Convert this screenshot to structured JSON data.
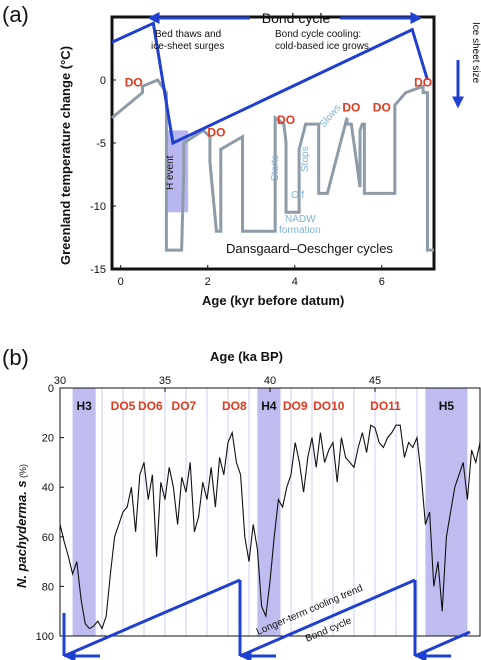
{
  "chart_data": [
    {
      "panel": "(a)",
      "type": "line",
      "xlabel": "Age (kyr before datum)",
      "ylabel": "Greenland temperature change (°C)",
      "xlim": [
        -0.2,
        7.2
      ],
      "ylim": [
        -15,
        5
      ],
      "xticks": [
        "0",
        "2",
        "4",
        "6"
      ],
      "yticks": [
        "0",
        "-5",
        "-10",
        "-15"
      ],
      "grid": false,
      "series": [
        {
          "color": "#8e9ba9",
          "x": [
            -0.2,
            0.5,
            0.5,
            0.85,
            0.85,
            1.05,
            1.05,
            1.4,
            1.45,
            1.45,
            1.9,
            2.05,
            2.05,
            2.2,
            2.3,
            2.3,
            2.55,
            2.8,
            2.8,
            3.0,
            3.55,
            3.55,
            3.75,
            3.8,
            3.8,
            4.1,
            4.1,
            4.25,
            4.55,
            4.55,
            4.75,
            5.2,
            5.2,
            5.3,
            5.5,
            5.5,
            5.55,
            5.6,
            5.6,
            6.3,
            6.3,
            6.55,
            6.95,
            6.95,
            7.05,
            7.05,
            7.2
          ],
          "y": [
            -3,
            -1,
            -0.5,
            0,
            0,
            -1,
            -13.5,
            -13.5,
            -7,
            -5,
            -4,
            -4.5,
            -6.5,
            -12,
            -12,
            -5.5,
            -5,
            -4.5,
            -12,
            -12,
            -12,
            -3,
            -3.5,
            -5,
            -10.5,
            -10.5,
            -5.5,
            -3.5,
            -3.5,
            -9,
            -9,
            -3,
            -3.5,
            -3.5,
            -8.5,
            -4,
            -3.5,
            -3.5,
            -9,
            -9,
            -2,
            -1,
            -0.5,
            -1,
            -1,
            -13.5,
            -13.5
          ]
        }
      ],
      "annotations": {
        "bond_cycle": "Bond cycle",
        "bed_thaws_1": "Bed thaws and",
        "bed_thaws_2": "ice-sheet surges",
        "cooling_1": "Bond cycle cooling:",
        "cooling_2": "cold-based ice grows",
        "ice_sheet_size": "Ice sheet size",
        "h_event": "H event",
        "do_label": "DO",
        "starts": "Starts",
        "stops": "Stops",
        "slows": "Slows",
        "off": "Off",
        "nadw_1": "NADW",
        "nadw_2": "formation",
        "dansgaard": "Dansgaard–Oeschger cycles"
      },
      "do_positions": [
        {
          "x": 0.3,
          "y": -0.5
        },
        {
          "x": 2.2,
          "y": -4.5
        },
        {
          "x": 3.8,
          "y": -3.5
        },
        {
          "x": 5.3,
          "y": -2.5
        },
        {
          "x": 6.0,
          "y": -2.5
        },
        {
          "x": 6.95,
          "y": -0.5
        }
      ],
      "bond_envelope": {
        "x": [
          -0.2,
          0.75,
          1.2,
          6.7,
          7.05
        ],
        "y": [
          3,
          4.5,
          -5,
          4,
          0
        ]
      },
      "h_event_band": {
        "x": [
          1.05,
          1.55
        ],
        "y": [
          -10.5,
          -4.0
        ]
      }
    },
    {
      "panel": "(b)",
      "type": "line",
      "title": "Age (ka BP)",
      "xlabel": "",
      "ylabel": "N. pachyderma. s",
      "ylabel_unit": "(%)",
      "xlim": [
        30,
        50
      ],
      "ylim": [
        100,
        0
      ],
      "xticks": [
        "30",
        "35",
        "40",
        "45"
      ],
      "yticks": [
        "0",
        "20",
        "40",
        "60",
        "80",
        "100"
      ],
      "grid": true,
      "h_events": [
        {
          "label": "H3",
          "x": [
            30.6,
            31.7
          ]
        },
        {
          "label": "H4",
          "x": [
            39.4,
            40.5
          ]
        },
        {
          "label": "H5",
          "x": [
            47.4,
            49.4
          ]
        }
      ],
      "do_labels": [
        {
          "label": "DO5",
          "x": 33.0
        },
        {
          "label": "DO6",
          "x": 34.3
        },
        {
          "label": "DO7",
          "x": 35.9
        },
        {
          "label": "DO8",
          "x": 38.3
        },
        {
          "label": "DO9",
          "x": 41.2
        },
        {
          "label": "DO10",
          "x": 42.8
        },
        {
          "label": "DO11",
          "x": 45.5
        }
      ],
      "series": [
        {
          "name": "N. pachyderma. s",
          "x": [
            30.0,
            30.2,
            30.4,
            30.6,
            30.8,
            31.0,
            31.2,
            31.4,
            31.6,
            31.8,
            32.0,
            32.2,
            32.4,
            32.6,
            32.8,
            33.0,
            33.2,
            33.4,
            33.6,
            33.8,
            34.0,
            34.2,
            34.4,
            34.6,
            34.8,
            35.0,
            35.2,
            35.4,
            35.6,
            35.8,
            36.0,
            36.2,
            36.4,
            36.6,
            36.8,
            37.0,
            37.2,
            37.4,
            37.6,
            37.8,
            38.0,
            38.2,
            38.4,
            38.6,
            38.8,
            39.0,
            39.2,
            39.4,
            39.6,
            39.8,
            40.0,
            40.2,
            40.4,
            40.6,
            40.8,
            41.0,
            41.2,
            41.4,
            41.6,
            41.8,
            42.0,
            42.2,
            42.4,
            42.6,
            42.8,
            43.0,
            43.2,
            43.4,
            43.6,
            43.8,
            44.0,
            44.2,
            44.4,
            44.6,
            44.8,
            45.0,
            45.2,
            45.4,
            45.6,
            45.8,
            46.0,
            46.2,
            46.4,
            46.6,
            46.8,
            47.0,
            47.2,
            47.4,
            47.6,
            47.8,
            48.0,
            48.2,
            48.4,
            48.6,
            48.8,
            49.0,
            49.2,
            49.4,
            49.6,
            49.8,
            50.0
          ],
          "values": [
            55,
            62,
            68,
            75,
            70,
            85,
            95,
            97,
            96,
            94,
            97,
            92,
            75,
            60,
            55,
            50,
            48,
            40,
            58,
            35,
            30,
            45,
            35,
            68,
            38,
            45,
            32,
            40,
            55,
            36,
            42,
            30,
            58,
            52,
            38,
            45,
            32,
            48,
            28,
            35,
            22,
            18,
            30,
            35,
            60,
            70,
            55,
            65,
            88,
            92,
            78,
            60,
            45,
            48,
            40,
            35,
            22,
            30,
            42,
            28,
            20,
            32,
            18,
            30,
            25,
            22,
            38,
            20,
            28,
            30,
            32,
            24,
            18,
            26,
            15,
            16,
            22,
            24,
            20,
            18,
            15,
            15,
            28,
            22,
            24,
            20,
            35,
            55,
            50,
            80,
            70,
            90,
            60,
            50,
            40,
            35,
            30,
            45,
            25,
            30,
            22
          ]
        }
      ],
      "annotations": {
        "cooling_trend": "Longer-term cooling trend",
        "bond_cycle": "Bond cycle"
      }
    }
  ],
  "colors": {
    "gray_line": "#8e9ba9",
    "bond_blue": "#1f3fd1",
    "do_red": "#e23a1e",
    "h_band": "#b8b6ee",
    "ann_blue": "#7fb2d9",
    "grid_blue": "#c9d2f2"
  }
}
